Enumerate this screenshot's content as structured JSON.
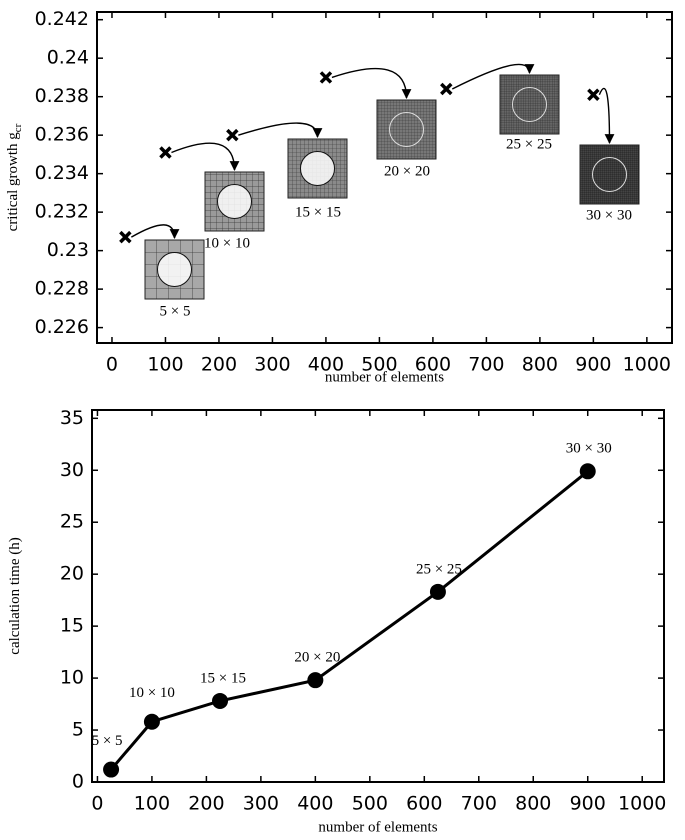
{
  "chart_data": [
    {
      "type": "scatter",
      "xlabel": "number of elements",
      "ylabel": "critical growth g",
      "ylabel_subscript": "cr",
      "x": [
        25,
        100,
        225,
        400,
        625,
        900
      ],
      "values": [
        0.2307,
        0.2351,
        0.236,
        0.239,
        0.2384,
        0.2381
      ],
      "point_labels": [
        "5 × 5",
        "10 × 10",
        "15 × 15",
        "20 × 20",
        "25 × 25",
        "30 × 30"
      ],
      "color": "#000000",
      "xlim": [
        -28,
        1047
      ],
      "xticks": [
        0,
        100,
        200,
        300,
        400,
        500,
        600,
        700,
        800,
        900,
        1000
      ],
      "ylim": [
        0.2252,
        0.2424
      ],
      "yticks": [
        0.226,
        0.228,
        0.23,
        0.232,
        0.234,
        0.236,
        0.238,
        0.24,
        0.242
      ]
    },
    {
      "type": "line",
      "xlabel": "number of elements",
      "ylabel": "calculation time (h)",
      "x": [
        25,
        100,
        225,
        400,
        625,
        900
      ],
      "values": [
        1.2,
        5.8,
        7.8,
        9.8,
        18.3,
        29.9
      ],
      "point_labels": [
        "5 × 5",
        "10 × 10",
        "15 × 15",
        "20 × 20",
        "25 × 25",
        "30 × 30"
      ],
      "color": "#000000",
      "xlim": [
        -10,
        1040
      ],
      "xticks": [
        0,
        100,
        200,
        300,
        400,
        500,
        600,
        700,
        800,
        900,
        1000
      ],
      "ylim": [
        0,
        35.8
      ],
      "yticks": [
        0,
        5,
        10,
        15,
        20,
        25,
        30,
        35
      ]
    }
  ]
}
